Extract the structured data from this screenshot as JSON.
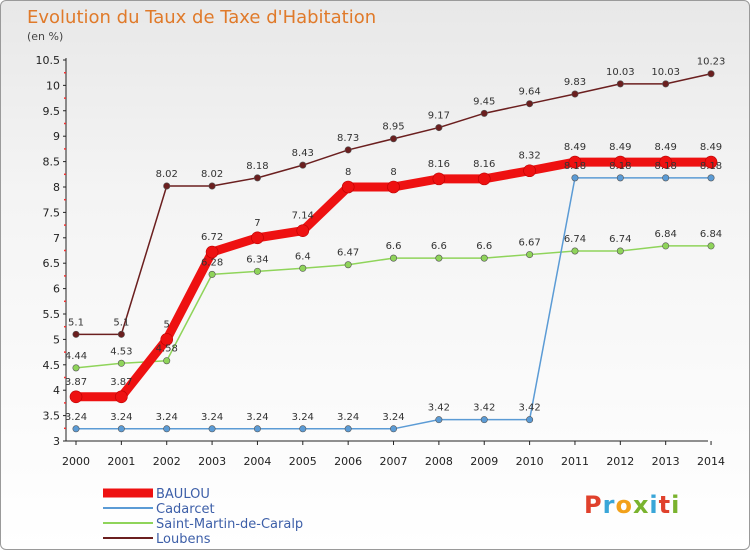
{
  "chart_data": {
    "type": "line",
    "title": "Evolution du Taux de Taxe d'Habitation",
    "subtitle": "(en %)",
    "x": [
      "2000",
      "2001",
      "2002",
      "2003",
      "2004",
      "2005",
      "2006",
      "2007",
      "2008",
      "2009",
      "2010",
      "2011",
      "2012",
      "2013",
      "2014"
    ],
    "ylim": [
      3,
      10.5
    ],
    "yticks": [
      "3",
      "3.5",
      "4",
      "4.5",
      "5",
      "5.5",
      "6",
      "6.5",
      "7",
      "7.5",
      "8",
      "8.5",
      "9",
      "9.5",
      "10",
      "10.5"
    ],
    "grid": false,
    "legend_position": "bottom-left",
    "series": [
      {
        "name": "BAULOU",
        "color": "#ee1111",
        "values": [
          3.87,
          3.87,
          5,
          6.72,
          7,
          7.14,
          8,
          8,
          8.16,
          8.16,
          8.32,
          8.49,
          8.49,
          8.49,
          8.49
        ],
        "labels": [
          "3.87",
          "3.87",
          "5",
          "6.72",
          "7",
          "7.14",
          "8",
          "8",
          "8.16",
          "8.16",
          "8.32",
          "8.49",
          "8.49",
          "8.49",
          "8.49"
        ]
      },
      {
        "name": "Cadarcet",
        "color": "#5b9bd5",
        "values": [
          3.24,
          3.24,
          3.24,
          3.24,
          3.24,
          3.24,
          3.24,
          3.24,
          3.42,
          3.42,
          3.42,
          8.18,
          8.18,
          8.18,
          8.18
        ],
        "labels": [
          "3.24",
          "3.24",
          "3.24",
          "3.24",
          "3.24",
          "3.24",
          "3.24",
          "3.24",
          "3.42",
          "3.42",
          "3.42",
          "8.18",
          "8.18",
          "8.18",
          "8.18"
        ]
      },
      {
        "name": "Saint-Martin-de-Caralp",
        "color": "#8fd45a",
        "values": [
          4.44,
          4.53,
          4.58,
          6.28,
          6.34,
          6.4,
          6.47,
          6.6,
          6.6,
          6.6,
          6.67,
          6.74,
          6.74,
          6.84,
          6.84
        ],
        "labels": [
          "4.44",
          "4.53",
          "4.58",
          "6.28",
          "6.34",
          "6.4",
          "6.47",
          "6.6",
          "6.6",
          "6.6",
          "6.67",
          "6.74",
          "6.74",
          "6.84",
          "6.84"
        ]
      },
      {
        "name": "Loubens",
        "color": "#6b1f1f",
        "values": [
          5.1,
          5.1,
          8.02,
          8.02,
          8.18,
          8.43,
          8.73,
          8.95,
          9.17,
          9.45,
          9.64,
          9.83,
          10.03,
          10.03,
          10.23
        ],
        "labels": [
          "5.1",
          "5.1",
          "8.02",
          "8.02",
          "8.18",
          "8.43",
          "8.73",
          "8.95",
          "9.17",
          "9.45",
          "9.64",
          "9.83",
          "10.03",
          "10.03",
          "10.23"
        ]
      }
    ]
  }
}
